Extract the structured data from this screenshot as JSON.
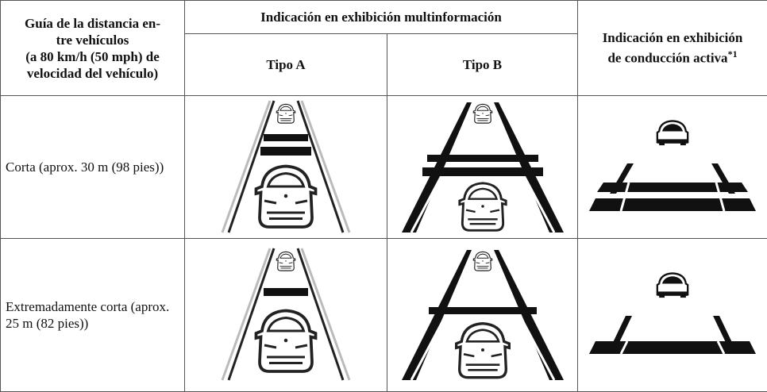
{
  "table": {
    "header": {
      "guide_lines": [
        "Guía de la distancia en-",
        "tre vehículos",
        "(a 80 km/h (50 mph) de",
        "velocidad del vehículo)"
      ],
      "multi": "Indicación en exhibición multinformación",
      "type_a": "Tipo A",
      "type_b": "Tipo B",
      "active_lines": [
        "Indicación en exhibición",
        "de conducción activa"
      ],
      "active_note": "*1"
    },
    "rows": [
      {
        "label": "Corta (aprox. 30 m (98 pies))"
      },
      {
        "label": "Extremadamente corta (aprox. 25 m (82 pies))"
      }
    ]
  }
}
